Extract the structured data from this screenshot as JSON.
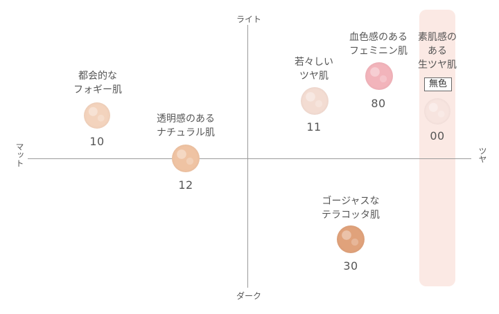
{
  "axes": {
    "top": "ライト",
    "bottom": "ダーク",
    "left": "マット",
    "right": "ツヤ"
  },
  "items": [
    {
      "code": "10",
      "title_lines": [
        "都会的な",
        "フォギー肌"
      ],
      "color": "#f3d3bd"
    },
    {
      "code": "12",
      "title_lines": [
        "透明感のある",
        "ナチュラル肌"
      ],
      "color": "#efc3a3"
    },
    {
      "code": "11",
      "title_lines": [
        "若々しい",
        "ツヤ肌"
      ],
      "color": "#f3dcd2"
    },
    {
      "code": "80",
      "title_lines": [
        "血色感のある",
        "フェミニン肌"
      ],
      "color": "#f2b4bb"
    },
    {
      "code": "00",
      "title_lines": [
        "素肌感の",
        "ある",
        "生ツヤ肌"
      ],
      "badge": "無色",
      "color": "#f7e4df"
    },
    {
      "code": "30",
      "title_lines": [
        "ゴージャスな",
        "テラコッタ肌"
      ],
      "color": "#e0a27b"
    }
  ]
}
